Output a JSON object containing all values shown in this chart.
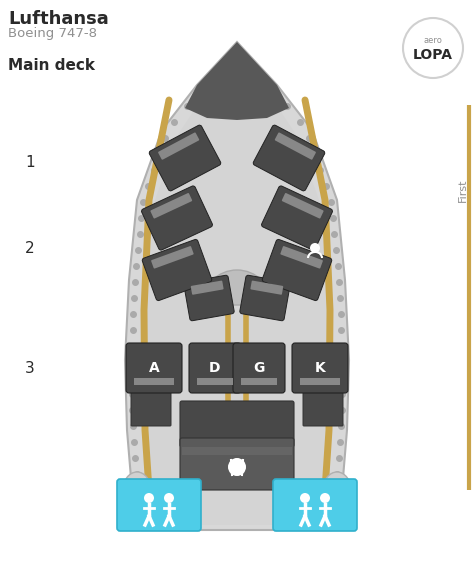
{
  "title": "Lufthansa",
  "subtitle": "Boeing 747-8",
  "section": "Main deck",
  "class_label": "First",
  "bg_color": "#ffffff",
  "fuselage_outer_color": "#d8d8d8",
  "fuselage_outer_edge": "#b0b0b0",
  "fuselage_inner_color": "#c8c8c8",
  "cabin_floor_color": "#c8c8c8",
  "cabin_inner_color": "#d4d4d4",
  "seat_dark": "#484848",
  "seat_mid": "#5a5a5a",
  "seat_bar": "#888888",
  "gold_color": "#c9a44a",
  "blue_wc": "#4ecde8",
  "logo_circle_color": "#d0d0d0",
  "text_dark": "#2a2a2a",
  "text_gray": "#909090",
  "gold_line_color": "#c9a44a",
  "dot_color": "#aaaaaa",
  "galley_color": "#484848",
  "galley_mid": "#555555",
  "wc_icon_color": "#ffffff",
  "nose_color": "#585858",
  "dome_color": "#c0c0c0"
}
